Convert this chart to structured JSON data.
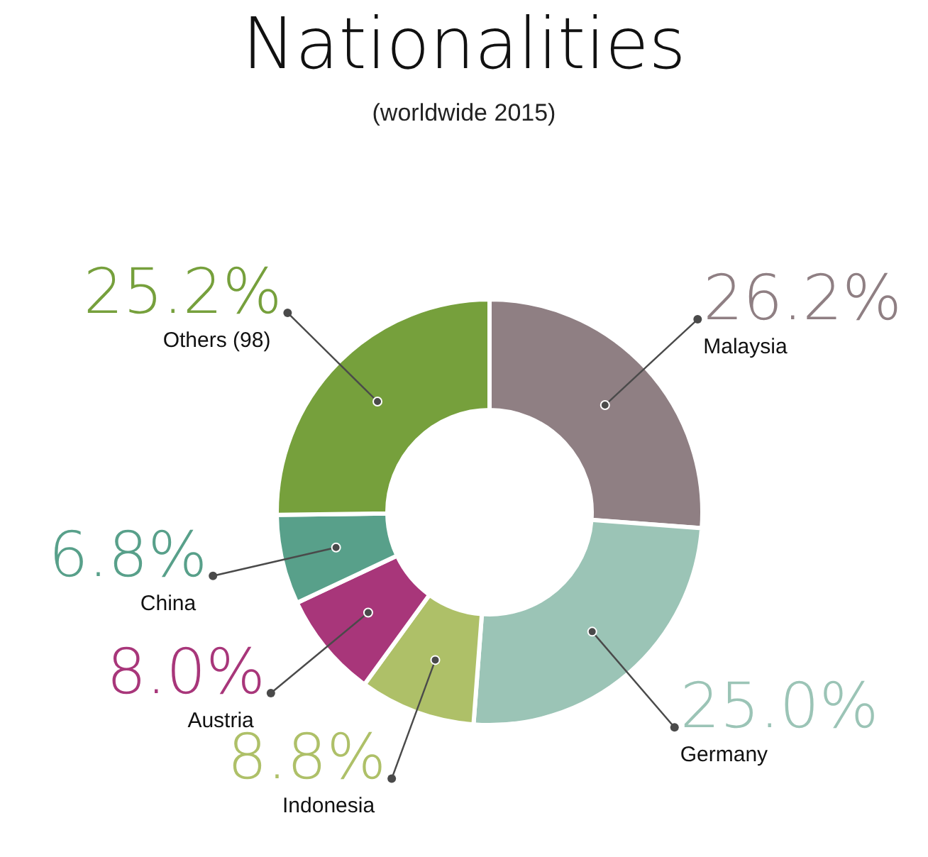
{
  "chart_data": {
    "type": "donut",
    "title": "Nationalities",
    "subtitle": "(worldwide 2015)",
    "categories": [
      "Malaysia",
      "Germany",
      "Indonesia",
      "Austria",
      "China",
      "Others (98)"
    ],
    "values": [
      26.2,
      25.0,
      8.8,
      8.0,
      6.8,
      25.2
    ],
    "value_labels": [
      "26.2%",
      "25.0%",
      "8.8%",
      "8.0%",
      "6.8%",
      "25.2%"
    ],
    "colors": [
      "#8f7f83",
      "#9bc4b6",
      "#aec068",
      "#a8367a",
      "#58a08a",
      "#76a03c"
    ]
  }
}
